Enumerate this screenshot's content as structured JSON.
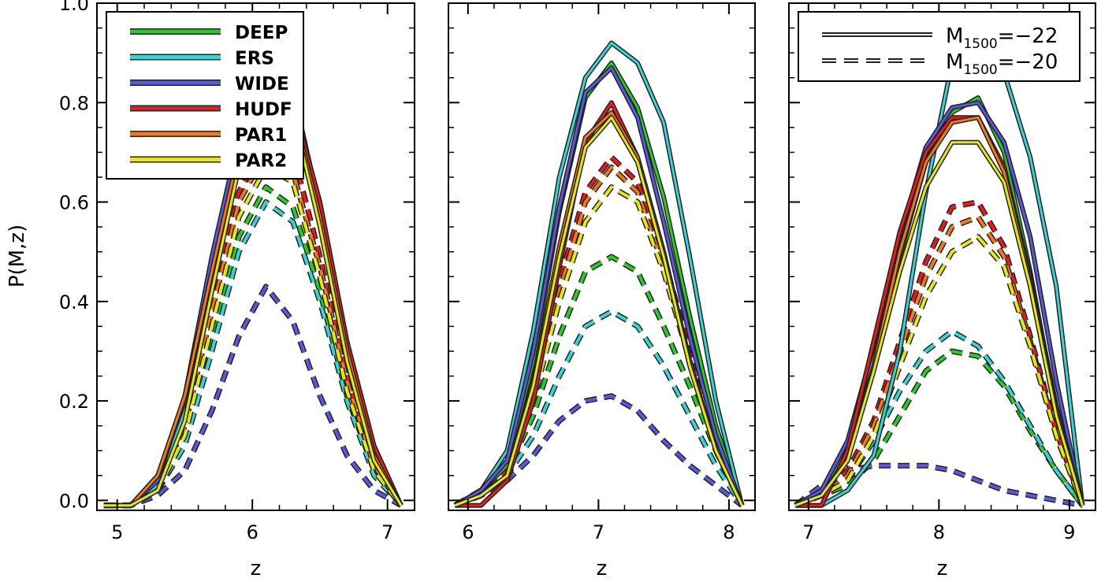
{
  "chart_data": {
    "type": "line",
    "ylabel": "P(M,z)",
    "xlabel": "z",
    "ylim": [
      -0.02,
      1.0
    ],
    "yticks": [
      0.0,
      0.2,
      0.4,
      0.6,
      0.8,
      1.0
    ],
    "ytick_labels": [
      "0.0",
      "0.2",
      "0.4",
      "0.6",
      "0.8",
      "1.0"
    ],
    "legend_fields": {
      "entries": [
        {
          "name": "DEEP",
          "color": "#2ec82e"
        },
        {
          "name": "ERS",
          "color": "#3fd2d2"
        },
        {
          "name": "WIDE",
          "color": "#5a5ad8"
        },
        {
          "name": "HUDF",
          "color": "#e01e1e"
        },
        {
          "name": "PAR1",
          "color": "#f07820"
        },
        {
          "name": "PAR2",
          "color": "#e6e61e"
        }
      ],
      "placement": "top-left"
    },
    "legend_magnitudes": {
      "placement": "top-right",
      "entries": [
        {
          "style": "solid",
          "prefix": "M",
          "sub": "1500",
          "suffix": "=−22"
        },
        {
          "style": "dashed",
          "prefix": "M",
          "sub": "1500",
          "suffix": "=−20"
        }
      ]
    },
    "panels": [
      {
        "xlim": [
          4.85,
          7.2
        ],
        "xticks": [
          5,
          6,
          7
        ],
        "xtick_labels": [
          "5",
          "6",
          "7"
        ],
        "z": [
          4.9,
          5.1,
          5.3,
          5.5,
          5.7,
          5.9,
          6.1,
          6.3,
          6.5,
          6.7,
          6.9,
          7.1
        ],
        "series": [
          {
            "name": "DEEP",
            "style": "solid",
            "values": [
              -0.01,
              -0.01,
              0.03,
              0.17,
              0.43,
              0.7,
              0.83,
              0.81,
              0.58,
              0.3,
              0.09,
              -0.01
            ]
          },
          {
            "name": "ERS",
            "style": "solid",
            "values": [
              -0.01,
              -0.01,
              0.03,
              0.18,
              0.45,
              0.71,
              0.84,
              0.82,
              0.59,
              0.31,
              0.1,
              -0.01
            ]
          },
          {
            "name": "WIDE",
            "style": "solid",
            "values": [
              -0.01,
              -0.01,
              0.04,
              0.21,
              0.49,
              0.73,
              0.84,
              0.83,
              0.58,
              0.3,
              0.09,
              -0.01
            ]
          },
          {
            "name": "HUDF",
            "style": "solid",
            "values": [
              -0.01,
              -0.01,
              0.05,
              0.2,
              0.45,
              0.7,
              0.82,
              0.8,
              0.6,
              0.32,
              0.11,
              -0.01
            ]
          },
          {
            "name": "PAR1",
            "style": "solid",
            "values": [
              -0.01,
              -0.01,
              0.05,
              0.21,
              0.46,
              0.7,
              0.82,
              0.79,
              0.57,
              0.3,
              0.09,
              -0.01
            ]
          },
          {
            "name": "PAR2",
            "style": "solid",
            "values": [
              -0.01,
              -0.01,
              0.02,
              0.16,
              0.42,
              0.67,
              0.8,
              0.78,
              0.55,
              0.28,
              0.08,
              -0.01
            ]
          },
          {
            "name": "DEEP",
            "style": "dashed",
            "values": [
              -0.01,
              -0.01,
              0.02,
              0.12,
              0.32,
              0.53,
              0.63,
              0.59,
              0.42,
              0.21,
              0.06,
              -0.01
            ]
          },
          {
            "name": "ERS",
            "style": "dashed",
            "values": [
              -0.01,
              -0.01,
              0.02,
              0.11,
              0.3,
              0.5,
              0.6,
              0.56,
              0.4,
              0.2,
              0.05,
              -0.01
            ]
          },
          {
            "name": "WIDE",
            "style": "dashed",
            "values": [
              -0.01,
              -0.01,
              0.01,
              0.06,
              0.18,
              0.33,
              0.43,
              0.36,
              0.21,
              0.09,
              0.02,
              -0.01
            ]
          },
          {
            "name": "HUDF",
            "style": "dashed",
            "values": [
              -0.01,
              -0.01,
              0.03,
              0.15,
              0.4,
              0.62,
              0.72,
              0.7,
              0.49,
              0.25,
              0.07,
              -0.01
            ]
          },
          {
            "name": "PAR1",
            "style": "dashed",
            "values": [
              -0.01,
              -0.01,
              0.03,
              0.15,
              0.38,
              0.6,
              0.7,
              0.66,
              0.47,
              0.24,
              0.07,
              -0.01
            ]
          },
          {
            "name": "PAR2",
            "style": "dashed",
            "values": [
              -0.01,
              -0.01,
              0.02,
              0.13,
              0.35,
              0.57,
              0.67,
              0.64,
              0.45,
              0.22,
              0.06,
              -0.01
            ]
          }
        ]
      },
      {
        "xlim": [
          5.85,
          8.2
        ],
        "xticks": [
          6,
          7,
          8
        ],
        "xtick_labels": [
          "6",
          "7",
          "8"
        ],
        "z": [
          5.9,
          6.1,
          6.3,
          6.5,
          6.7,
          6.9,
          7.1,
          7.3,
          7.5,
          7.7,
          7.9,
          8.1
        ],
        "series": [
          {
            "name": "DEEP",
            "style": "solid",
            "values": [
              -0.01,
              0.02,
              0.07,
              0.28,
              0.58,
              0.81,
              0.88,
              0.79,
              0.61,
              0.37,
              0.15,
              -0.01
            ]
          },
          {
            "name": "ERS",
            "style": "solid",
            "values": [
              -0.01,
              0.02,
              0.1,
              0.34,
              0.65,
              0.85,
              0.92,
              0.88,
              0.76,
              0.49,
              0.2,
              -0.01
            ]
          },
          {
            "name": "WIDE",
            "style": "solid",
            "values": [
              -0.01,
              0.02,
              0.08,
              0.3,
              0.59,
              0.82,
              0.87,
              0.77,
              0.56,
              0.33,
              0.13,
              -0.01
            ]
          },
          {
            "name": "HUDF",
            "style": "solid",
            "values": [
              -0.01,
              -0.01,
              0.04,
              0.2,
              0.47,
              0.72,
              0.8,
              0.69,
              0.5,
              0.28,
              0.1,
              -0.01
            ]
          },
          {
            "name": "PAR1",
            "style": "solid",
            "values": [
              -0.01,
              0.01,
              0.05,
              0.24,
              0.51,
              0.73,
              0.78,
              0.69,
              0.5,
              0.28,
              0.1,
              -0.01
            ]
          },
          {
            "name": "PAR2",
            "style": "solid",
            "values": [
              -0.01,
              0.01,
              0.05,
              0.23,
              0.49,
              0.71,
              0.77,
              0.68,
              0.49,
              0.27,
              0.1,
              -0.01
            ]
          },
          {
            "name": "DEEP",
            "style": "dashed",
            "values": [
              -0.01,
              0.02,
              0.06,
              0.17,
              0.33,
              0.46,
              0.49,
              0.46,
              0.35,
              0.23,
              0.1,
              -0.01
            ]
          },
          {
            "name": "ERS",
            "style": "dashed",
            "values": [
              -0.01,
              0.02,
              0.05,
              0.13,
              0.25,
              0.35,
              0.38,
              0.35,
              0.27,
              0.17,
              0.07,
              -0.01
            ]
          },
          {
            "name": "WIDE",
            "style": "dashed",
            "values": [
              -0.01,
              0.01,
              0.04,
              0.09,
              0.16,
              0.2,
              0.21,
              0.18,
              0.12,
              0.07,
              0.03,
              -0.01
            ]
          },
          {
            "name": "HUDF",
            "style": "dashed",
            "values": [
              -0.01,
              0.01,
              0.06,
              0.22,
              0.44,
              0.62,
              0.69,
              0.64,
              0.49,
              0.3,
              0.13,
              -0.01
            ]
          },
          {
            "name": "PAR1",
            "style": "dashed",
            "values": [
              -0.01,
              0.01,
              0.05,
              0.21,
              0.42,
              0.6,
              0.67,
              0.62,
              0.47,
              0.29,
              0.12,
              -0.01
            ]
          },
          {
            "name": "PAR2",
            "style": "dashed",
            "values": [
              -0.01,
              0.01,
              0.05,
              0.2,
              0.4,
              0.56,
              0.63,
              0.6,
              0.46,
              0.28,
              0.12,
              -0.01
            ]
          }
        ]
      },
      {
        "xlim": [
          6.85,
          9.2
        ],
        "xticks": [
          7,
          8,
          9
        ],
        "xtick_labels": [
          "7",
          "8",
          "9"
        ],
        "z": [
          6.9,
          7.1,
          7.3,
          7.5,
          7.7,
          7.9,
          8.1,
          8.3,
          8.5,
          8.7,
          8.9,
          9.1
        ],
        "series": [
          {
            "name": "DEEP",
            "style": "solid",
            "values": [
              -0.01,
              0.02,
              0.1,
              0.27,
              0.49,
              0.68,
              0.78,
              0.81,
              0.7,
              0.46,
              0.18,
              -0.01
            ]
          },
          {
            "name": "ERS",
            "style": "solid",
            "values": [
              -0.01,
              -0.01,
              0.02,
              0.09,
              0.3,
              0.62,
              0.88,
              0.94,
              0.86,
              0.69,
              0.43,
              -0.01
            ]
          },
          {
            "name": "WIDE",
            "style": "solid",
            "values": [
              -0.01,
              0.02,
              0.12,
              0.31,
              0.53,
              0.71,
              0.79,
              0.8,
              0.72,
              0.53,
              0.24,
              -0.01
            ]
          },
          {
            "name": "HUDF",
            "style": "solid",
            "values": [
              -0.01,
              -0.01,
              0.1,
              0.32,
              0.54,
              0.7,
              0.77,
              0.77,
              0.67,
              0.45,
              0.19,
              -0.01
            ]
          },
          {
            "name": "PAR1",
            "style": "solid",
            "values": [
              -0.01,
              0.01,
              0.08,
              0.27,
              0.5,
              0.68,
              0.76,
              0.77,
              0.66,
              0.44,
              0.18,
              -0.01
            ]
          },
          {
            "name": "PAR2",
            "style": "solid",
            "values": [
              -0.01,
              0.01,
              0.08,
              0.26,
              0.46,
              0.63,
              0.72,
              0.72,
              0.64,
              0.43,
              0.17,
              -0.01
            ]
          },
          {
            "name": "DEEP",
            "style": "dashed",
            "values": [
              -0.01,
              0.01,
              0.03,
              0.08,
              0.17,
              0.26,
              0.3,
              0.29,
              0.23,
              0.14,
              0.06,
              -0.01
            ]
          },
          {
            "name": "ERS",
            "style": "dashed",
            "values": [
              -0.01,
              0.01,
              0.04,
              0.12,
              0.22,
              0.3,
              0.34,
              0.31,
              0.24,
              0.15,
              0.06,
              -0.01
            ]
          },
          {
            "name": "WIDE",
            "style": "dashed",
            "values": [
              -0.01,
              0.03,
              0.06,
              0.07,
              0.07,
              0.07,
              0.06,
              0.04,
              0.02,
              0.01,
              0.0,
              -0.01
            ]
          },
          {
            "name": "HUDF",
            "style": "dashed",
            "values": [
              -0.01,
              0.01,
              0.06,
              0.16,
              0.32,
              0.48,
              0.59,
              0.6,
              0.51,
              0.33,
              0.14,
              -0.01
            ]
          },
          {
            "name": "PAR1",
            "style": "dashed",
            "values": [
              -0.01,
              0.01,
              0.05,
              0.15,
              0.3,
              0.45,
              0.55,
              0.57,
              0.49,
              0.32,
              0.13,
              -0.01
            ]
          },
          {
            "name": "PAR2",
            "style": "dashed",
            "values": [
              -0.01,
              0.01,
              0.04,
              0.13,
              0.27,
              0.41,
              0.5,
              0.53,
              0.47,
              0.31,
              0.13,
              -0.01
            ]
          }
        ]
      }
    ]
  }
}
